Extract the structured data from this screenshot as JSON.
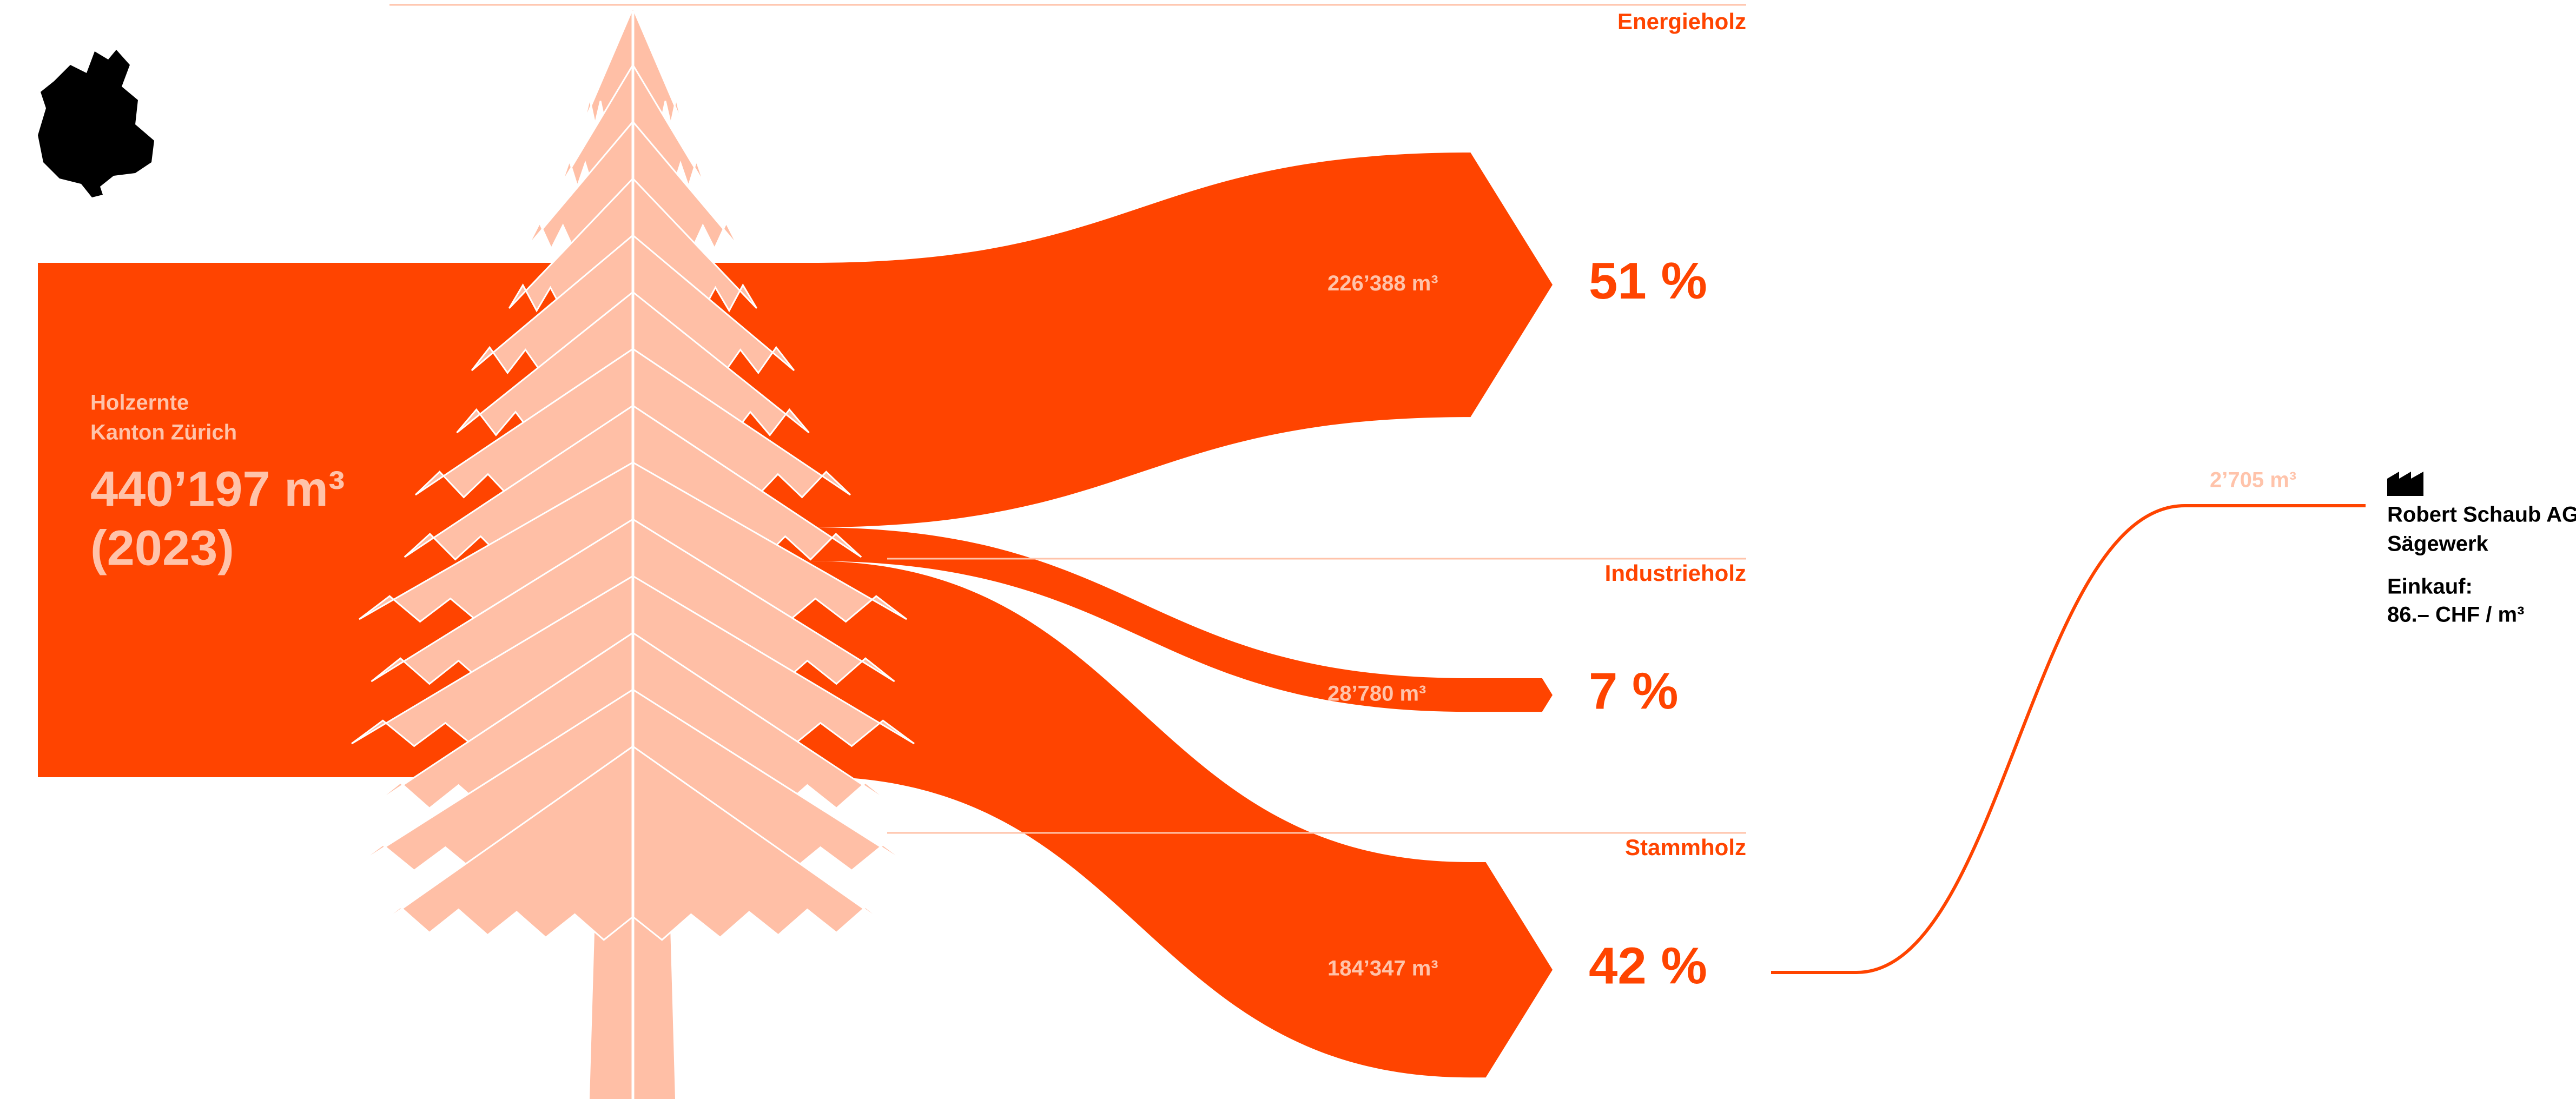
{
  "chart_data": {
    "type": "sankey",
    "color": "#ff4400",
    "source": {
      "label_lines": [
        "Holzernte",
        "Kanton Zürich"
      ],
      "value": 440197,
      "value_label": "440’197 m³",
      "year_label": "(2023)"
    },
    "flows": [
      {
        "name": "Energieholz",
        "value": 226388,
        "value_label": "226’388 m³",
        "share": 51,
        "share_label": "51 %"
      },
      {
        "name": "Industrieholz",
        "value": 28780,
        "value_label": "28’780 m³",
        "share": 7,
        "share_label": "7 %"
      },
      {
        "name": "Stammholz",
        "value": 184347,
        "value_label": "184’347 m³",
        "share": 42,
        "share_label": "42 %"
      }
    ],
    "downstream": {
      "value": 2705,
      "value_label": "2’705 m³",
      "name": "Robert Schaub AG",
      "subtitle": "Sägewerk",
      "price_title": "Einkauf:",
      "price_label": "86.– CHF / m³"
    }
  }
}
